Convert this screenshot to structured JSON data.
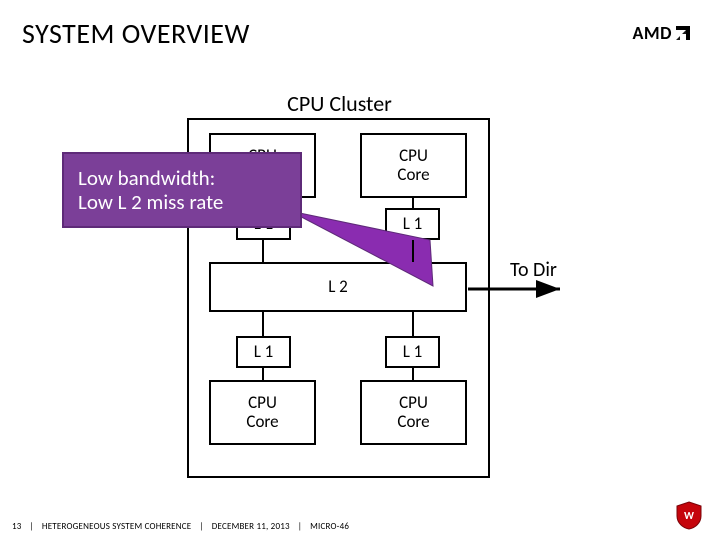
{
  "title": "SYSTEM OVERVIEW",
  "logo": {
    "text": "AMD"
  },
  "cluster": {
    "label": "CPU Cluster",
    "cpu_core_label": "CPU\nCore",
    "l1_label": "L 1",
    "l2_label": "L 2",
    "colors": {
      "border": "#000000",
      "background": "#ffffff"
    }
  },
  "callout": {
    "line1": "Low bandwidth:",
    "line2": "Low L 2 miss rate",
    "bg": "#7b3f98",
    "border": "#5e2a78",
    "text_color": "#ffffff"
  },
  "to_dir_label": "To Dir",
  "connectors": {
    "triangle_color": "#8a2cb0",
    "arrow_color": "#000000"
  },
  "footer": {
    "page": "13",
    "talk": "HETEROGENEOUS SYSTEM COHERENCE",
    "date": "DECEMBER 11, 2013",
    "venue": "MICRO-46",
    "separator": "|"
  }
}
